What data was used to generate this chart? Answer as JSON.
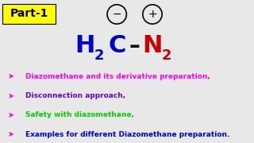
{
  "background_color": "#e8e8e8",
  "part_label": "Part-1",
  "part_bg": "#ffff00",
  "part_color": "#000000",
  "part_fontsize": 10,
  "h2c_color": "#0000cc",
  "n2_color": "#cc0000",
  "dash_color": "#000000",
  "lines": [
    {
      "text": "Diazomethane and its derivative preparation,",
      "color": "#ff00ff"
    },
    {
      "text": "Disconnection approach,",
      "color": "#6600cc"
    },
    {
      "text": "Safety with diazomethane,",
      "color": "#00cc00"
    },
    {
      "text": "Examples for different Diazomethane preparation.",
      "color": "#0000cc"
    }
  ],
  "bullet_color": "#ff00ff",
  "text_fontsize": 6.5
}
